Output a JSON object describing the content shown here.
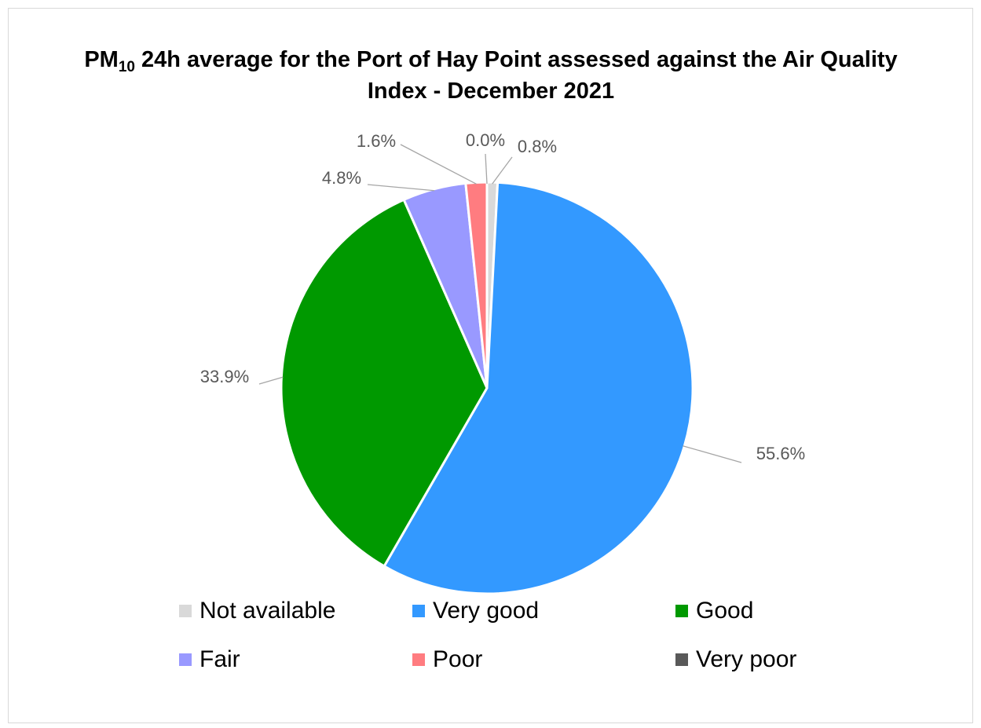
{
  "chart_data": {
    "type": "pie",
    "title": {
      "prefix": "PM",
      "subscript": "10",
      "rest": "24h average for the Port of Hay Point assessed against the Air Quality Index - December 2021"
    },
    "categories": [
      "Not available",
      "Very good",
      "Good",
      "Fair",
      "Poor",
      "Very poor"
    ],
    "values": [
      0.8,
      55.6,
      33.9,
      4.8,
      1.6,
      0.0
    ],
    "value_labels": [
      "0.8%",
      "55.6%",
      "33.9%",
      "4.8%",
      "1.6%",
      "0.0%"
    ],
    "colors": [
      "#d9d9d9",
      "#3399ff",
      "#009900",
      "#9999ff",
      "#ff7c80",
      "#595959"
    ],
    "legend": "bottom"
  }
}
